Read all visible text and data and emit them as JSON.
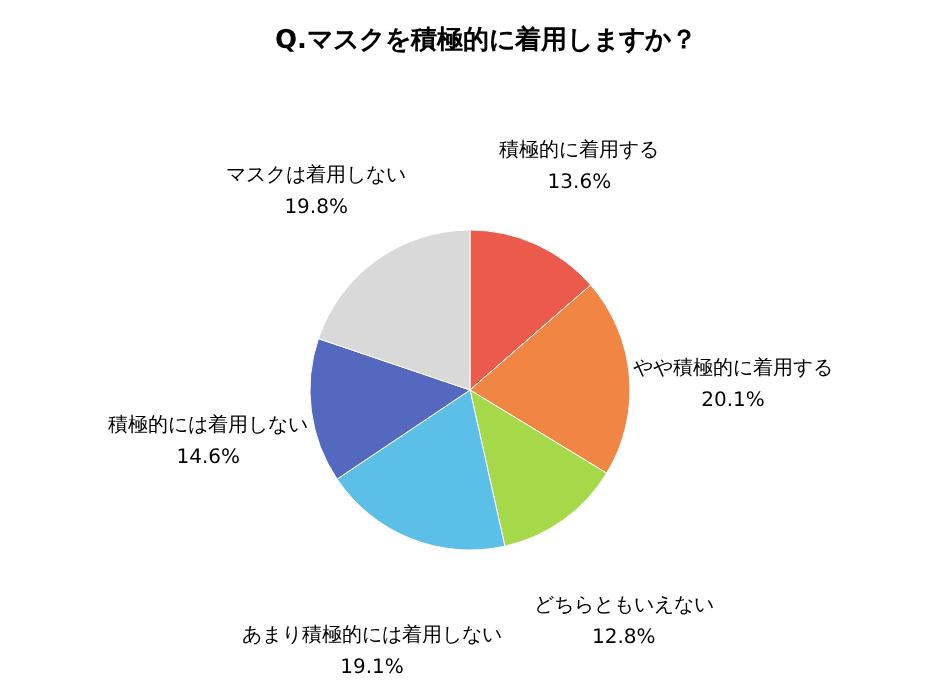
{
  "chart_data": {
    "type": "pie",
    "title": "Q.マスクを積極的に着用しますか？",
    "categories": [
      "積極的に着用する",
      "やや積極的に着用する",
      "どちらともいえない",
      "あまり積極的には着用しない",
      "積極的には着用しない",
      "マスクは着用しない"
    ],
    "values": [
      13.6,
      20.1,
      12.8,
      19.1,
      14.6,
      19.8
    ],
    "value_labels": [
      "13.6%",
      "20.1%",
      "12.8%",
      "19.1%",
      "14.6%",
      "19.8%"
    ],
    "colors": [
      "#ec5a4c",
      "#f08544",
      "#a6d94a",
      "#5cbfe8",
      "#5568c0",
      "#d9d9d9"
    ],
    "legend": false
  }
}
